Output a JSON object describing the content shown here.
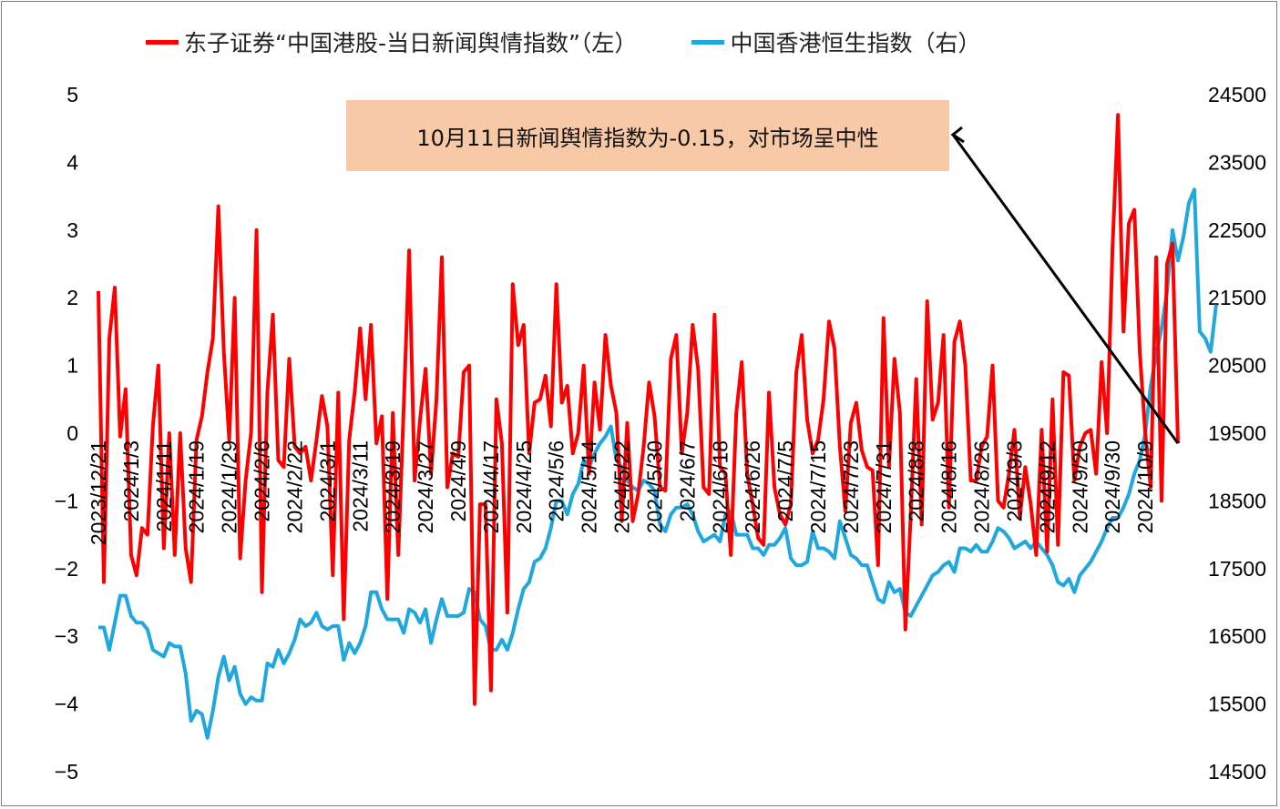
{
  "chart_data": {
    "type": "line",
    "legend": [
      {
        "label": "东子证券“中国港股-当日新闻舆情指数”（左）",
        "color": "#ff0000"
      },
      {
        "label": "中国香港恒生指数（右）",
        "color": "#1fa8e0"
      }
    ],
    "annotation": "10月11日新闻舆情指数为-0.15，对市场呈中性",
    "left_axis": {
      "ticks": [
        5,
        4,
        3,
        2,
        1,
        0,
        -1,
        -2,
        -3,
        -4,
        -5
      ],
      "labels": [
        "5",
        "4",
        "3",
        "2",
        "1",
        "0",
        "−1",
        "−2",
        "−3",
        "−4",
        "−5"
      ],
      "ylim": [
        -5,
        5
      ]
    },
    "right_axis": {
      "ticks": [
        24500,
        23500,
        22500,
        21500,
        20500,
        19500,
        18500,
        17500,
        16500,
        15500,
        14500
      ],
      "labels": [
        "24500",
        "23500",
        "22500",
        "21500",
        "20500",
        "19500",
        "18500",
        "17500",
        "16500",
        "15500",
        "14500"
      ],
      "ylim": [
        14500,
        24500
      ]
    },
    "x_labels": [
      "2023/12/21",
      "2024/1/3",
      "2024/1/11",
      "2024/1/19",
      "2024/1/29",
      "2024/2/6",
      "2024/2/22",
      "2024/3/1",
      "2024/3/11",
      "2024/3/19",
      "2024/3/27",
      "2024/4/9",
      "2024/4/17",
      "2024/4/25",
      "2024/5/6",
      "2024/5/14",
      "2024/5/22",
      "2024/5/30",
      "2024/6/7",
      "2024/6/18",
      "2024/6/26",
      "2024/7/5",
      "2024/7/15",
      "2024/7/23",
      "2024/7/31",
      "2024/8/8",
      "2024/8/16",
      "2024/8/26",
      "2024/9/3",
      "2024/9/12",
      "2024/9/20",
      "2024/9/30",
      "2024/10/9"
    ],
    "x_label_index": [
      0,
      6,
      12,
      18,
      24,
      30,
      36,
      42,
      48,
      54,
      60,
      66,
      72,
      78,
      84,
      90,
      96,
      102,
      108,
      114,
      120,
      126,
      132,
      138,
      144,
      150,
      156,
      162,
      168,
      174,
      180,
      186,
      192
    ],
    "series": [
      {
        "name": "东子证券“中国港股-当日新闻舆情指数”（左）",
        "axis": "left",
        "color": "#ff0000",
        "values": [
          2.1,
          -2.2,
          1.4,
          2.15,
          -0.05,
          0.65,
          -1.8,
          -2.1,
          -1.4,
          -1.5,
          0.1,
          1.0,
          -1.7,
          0.0,
          -1.8,
          0.0,
          -1.7,
          -2.2,
          -0.1,
          0.25,
          0.9,
          1.4,
          3.35,
          1.2,
          -0.1,
          2.0,
          -1.85,
          -0.7,
          0.0,
          3.0,
          -2.35,
          0.6,
          1.75,
          -0.4,
          -0.5,
          1.1,
          -0.2,
          -0.3,
          -0.2,
          -0.7,
          -0.1,
          0.55,
          0.1,
          -2.1,
          0.6,
          -2.75,
          -0.1,
          0.6,
          1.55,
          0.5,
          1.6,
          -0.15,
          0.25,
          -2.45,
          0.3,
          -1.8,
          0.4,
          2.7,
          -0.7,
          0.2,
          0.95,
          -0.6,
          0.5,
          2.6,
          -0.8,
          -0.3,
          -0.35,
          0.9,
          1.0,
          -4.0,
          -1.05,
          -1.05,
          -3.8,
          0.5,
          -0.15,
          -2.65,
          2.2,
          1.3,
          1.6,
          -0.3,
          0.45,
          0.5,
          0.85,
          0.1,
          2.2,
          0.45,
          0.7,
          -0.3,
          0.0,
          1.0,
          -0.6,
          0.75,
          0.05,
          1.45,
          0.7,
          0.3,
          -1.3,
          0.15,
          -1.3,
          -0.9,
          -0.2,
          0.75,
          0.25,
          -0.8,
          -0.85,
          1.1,
          1.45,
          -0.3,
          0.3,
          1.6,
          0.95,
          -0.8,
          -0.9,
          1.75,
          -0.5,
          -0.6,
          -1.8,
          0.3,
          1.05,
          -0.6,
          -1.05,
          -1.55,
          -1.65,
          0.6,
          -0.8,
          -1.2,
          -1.35,
          -1.05,
          0.9,
          1.45,
          0.2,
          -0.3,
          -0.1,
          0.5,
          1.65,
          1.25,
          -0.2,
          -1.15,
          0.15,
          0.45,
          -0.25,
          -0.5,
          -0.55,
          -1.95,
          1.7,
          -0.5,
          1.1,
          0.3,
          -2.9,
          -1.2,
          0.8,
          -1.35,
          1.95,
          0.2,
          0.45,
          1.45,
          -1.1,
          1.35,
          1.65,
          1.0,
          -0.7,
          -0.7,
          -0.2,
          -0.05,
          1.0,
          -1.0,
          -1.1,
          -0.6,
          0.05,
          -1.25,
          -0.5,
          -1.05,
          -1.8,
          0.05,
          -1.75,
          0.5,
          -1.65,
          0.9,
          0.85,
          -0.7,
          -0.2,
          0.0,
          0.05,
          -0.6,
          1.05,
          0.0,
          2.75,
          4.7,
          1.5,
          3.1,
          3.3,
          1.2,
          0.0,
          -0.8,
          2.6,
          -1.0,
          2.5,
          2.8,
          -0.15
        ]
      },
      {
        "name": "中国香港恒生指数（右）",
        "axis": "right",
        "color": "#1fa8e0",
        "values": [
          16630,
          16630,
          16300,
          16700,
          17100,
          17100,
          16800,
          16700,
          16700,
          16600,
          16300,
          16250,
          16200,
          16400,
          16350,
          16350,
          15950,
          15250,
          15400,
          15350,
          15000,
          15400,
          15900,
          16200,
          15850,
          16050,
          15650,
          15500,
          15600,
          15550,
          15550,
          16100,
          16050,
          16300,
          16100,
          16250,
          16450,
          16750,
          16650,
          16700,
          16850,
          16650,
          16600,
          16650,
          16650,
          16150,
          16400,
          16250,
          16400,
          16650,
          17150,
          17150,
          16900,
          16750,
          16750,
          16750,
          16550,
          16900,
          16850,
          16700,
          16900,
          16400,
          16750,
          17050,
          16800,
          16800,
          16800,
          16850,
          17200,
          17150,
          16750,
          16650,
          16300,
          16300,
          16450,
          16300,
          16550,
          16900,
          17200,
          17300,
          17600,
          17650,
          17800,
          18100,
          18500,
          18500,
          18300,
          18600,
          18750,
          19100,
          19000,
          19200,
          19350,
          19450,
          19600,
          19100,
          19000,
          18800,
          18700,
          18650,
          18800,
          18750,
          18650,
          18150,
          18050,
          18300,
          18400,
          18400,
          18450,
          18300,
          18050,
          17900,
          17950,
          18000,
          17900,
          18300,
          18350,
          18000,
          18000,
          18000,
          17800,
          17800,
          17700,
          17850,
          17850,
          17950,
          18100,
          17650,
          17550,
          17550,
          17600,
          18050,
          17800,
          17800,
          17750,
          17650,
          18200,
          17950,
          17700,
          17650,
          17550,
          17550,
          17300,
          17050,
          17000,
          17300,
          17150,
          17200,
          16850,
          16800,
          16950,
          17100,
          17250,
          17400,
          17450,
          17550,
          17600,
          17450,
          17800,
          17800,
          17750,
          17850,
          17750,
          17750,
          17900,
          18100,
          18050,
          17950,
          17800,
          17850,
          17900,
          17800,
          17900,
          17800,
          17700,
          17550,
          17300,
          17250,
          17350,
          17150,
          17400,
          17500,
          17600,
          17750,
          17900,
          18100,
          18250,
          18250,
          18400,
          18600,
          18900,
          19100,
          19500,
          20200,
          20650,
          21050,
          21600,
          22500,
          22050,
          22400,
          22900,
          23100,
          21000,
          20900,
          20700,
          21400
        ]
      }
    ]
  }
}
